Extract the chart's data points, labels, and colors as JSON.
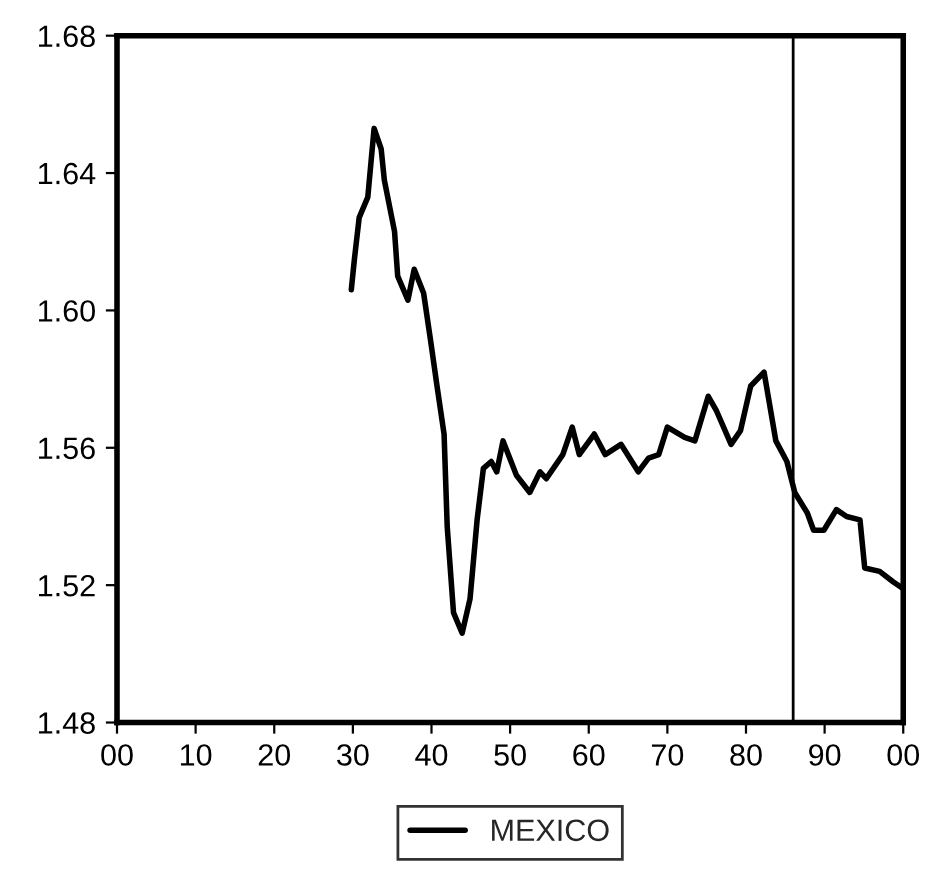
{
  "chart_data": {
    "type": "line",
    "xlim": [
      1900,
      2000
    ],
    "xticks": [
      {
        "value": 1900,
        "label": "00"
      },
      {
        "value": 1910,
        "label": "10"
      },
      {
        "value": 1920,
        "label": "20"
      },
      {
        "value": 1930,
        "label": "30"
      },
      {
        "value": 1940,
        "label": "40"
      },
      {
        "value": 1950,
        "label": "50"
      },
      {
        "value": 1960,
        "label": "60"
      },
      {
        "value": 1970,
        "label": "70"
      },
      {
        "value": 1980,
        "label": "80"
      },
      {
        "value": 1990,
        "label": "90"
      },
      {
        "value": 2000,
        "label": "00"
      }
    ],
    "ylim": [
      1.48,
      1.68
    ],
    "yticks": [
      {
        "value": 1.48,
        "label": "1.48"
      },
      {
        "value": 1.52,
        "label": "1.52"
      },
      {
        "value": 1.56,
        "label": "1.56"
      },
      {
        "value": 1.6,
        "label": "1.60"
      },
      {
        "value": 1.64,
        "label": "1.64"
      },
      {
        "value": 1.68,
        "label": "1.68"
      }
    ],
    "grid": false,
    "legend": "bottom",
    "marker": "none",
    "line_style": "solid",
    "ref_lines": [
      {
        "axis": "x",
        "value": 1986,
        "color": "#000000"
      }
    ],
    "series": [
      {
        "name": "MEXICO",
        "color": "#000000",
        "x": [
          1929.8,
          1930.2,
          1930.8,
          1931.9,
          1932.3,
          1932.7,
          1933.6,
          1934,
          1935.3,
          1935.7,
          1937,
          1937.8,
          1939,
          1939.9,
          1940.7,
          1941.6,
          1942,
          1942.8,
          1943.9,
          1944.9,
          1945.8,
          1946.6,
          1947.6,
          1948.3,
          1949.1,
          1950.8,
          1952.5,
          1953.8,
          1954.6,
          1956.7,
          1957.9,
          1958.8,
          1960.7,
          1962.1,
          1964.1,
          1966.3,
          1967.6,
          1968.9,
          1970,
          1972.2,
          1973.5,
          1975.2,
          1976.2,
          1978.1,
          1979.3,
          1980.6,
          1982.3,
          1983.8,
          1985.2,
          1986.2,
          1987.8,
          1988.6,
          1989.9,
          1991.5,
          1992.8,
          1994.5,
          1995.1,
          1997,
          1998.7,
          2000
        ],
        "values": [
          1.606,
          1.615,
          1.627,
          1.633,
          1.643,
          1.653,
          1.647,
          1.638,
          1.623,
          1.61,
          1.603,
          1.612,
          1.605,
          1.591,
          1.578,
          1.564,
          1.537,
          1.512,
          1.506,
          1.516,
          1.539,
          1.554,
          1.556,
          1.553,
          1.562,
          1.552,
          1.547,
          1.553,
          1.551,
          1.558,
          1.566,
          1.558,
          1.564,
          1.558,
          1.561,
          1.553,
          1.557,
          1.558,
          1.566,
          1.563,
          1.562,
          1.575,
          1.571,
          1.561,
          1.565,
          1.578,
          1.582,
          1.562,
          1.556,
          1.547,
          1.541,
          1.536,
          1.536,
          1.542,
          1.54,
          1.539,
          1.525,
          1.524,
          1.521,
          1.519
        ]
      }
    ]
  }
}
